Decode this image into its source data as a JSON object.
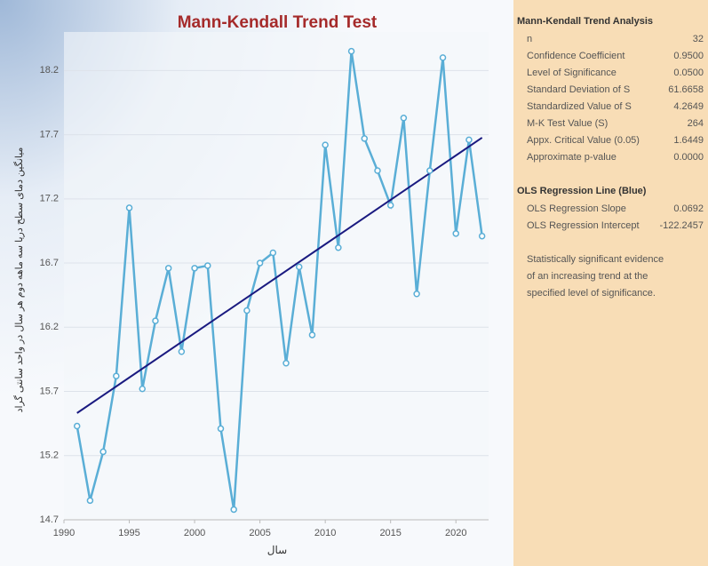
{
  "chart_data": {
    "type": "line",
    "title": "Mann-Kendall Trend Test",
    "xlabel": "سال",
    "ylabel": "میانگین دمای سطح دریا سه ماهه دوم هر سال در واحد سانتی گراد",
    "x": [
      1991,
      1992,
      1993,
      1994,
      1995,
      1996,
      1997,
      1998,
      1999,
      2000,
      2001,
      2002,
      2003,
      2004,
      2005,
      2006,
      2007,
      2008,
      2009,
      2010,
      2011,
      2012,
      2013,
      2014,
      2015,
      2016,
      2017,
      2018,
      2019,
      2020,
      2021,
      2022
    ],
    "series": [
      {
        "color": "#5aaed6",
        "values": [
          15.43,
          14.85,
          15.23,
          15.82,
          17.13,
          15.72,
          16.25,
          16.66,
          16.01,
          16.66,
          16.68,
          15.41,
          14.78,
          16.33,
          16.7,
          16.78,
          15.92,
          16.67,
          16.14,
          17.62,
          16.82,
          18.35,
          17.67,
          17.42,
          17.15,
          17.83,
          16.46,
          17.42,
          18.3,
          16.93,
          17.66,
          16.91
        ]
      }
    ],
    "trend": {
      "color": "#1a1a80",
      "slope": 0.0692,
      "intercept": -122.2457
    },
    "xlim": [
      1990,
      2022.5
    ],
    "xticks": [
      1990,
      1995,
      2000,
      2005,
      2010,
      2015,
      2020
    ],
    "ylim": [
      14.7,
      18.5
    ],
    "yticks": [
      14.7,
      15.2,
      15.7,
      16.2,
      16.7,
      17.2,
      17.7,
      18.2
    ],
    "grid": true
  },
  "panel": {
    "title": "Mann-Kendall Trend Analysis",
    "rows": [
      [
        "n",
        "32"
      ],
      [
        "Confidence Coefficient",
        "0.9500"
      ],
      [
        "Level of Significance",
        "0.0500"
      ],
      [
        "Standard Deviation of S",
        "61.6658"
      ],
      [
        "Standardized Value of S",
        "4.2649"
      ],
      [
        "M-K Test Value (S)",
        "264"
      ],
      [
        "Appx. Critical Value (0.05)",
        "1.6449"
      ],
      [
        "Approximate p-value",
        "0.0000"
      ]
    ],
    "ols_title": "OLS Regression Line (Blue)",
    "ols_rows": [
      [
        "OLS Regression Slope",
        "0.0692"
      ],
      [
        "OLS Regression Intercept",
        "-122.2457"
      ]
    ],
    "note": [
      "Statistically significant evidence",
      "of an increasing trend at the",
      "specified level of significance."
    ]
  }
}
